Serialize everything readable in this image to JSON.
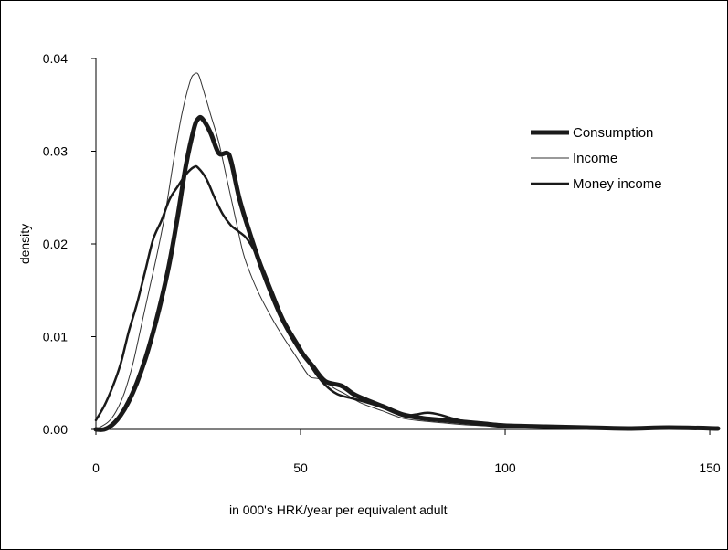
{
  "chart_data": {
    "type": "line",
    "title": "",
    "xlabel": "in 000's HRK/year per equivalent adult",
    "ylabel": "density",
    "xlim": [
      0,
      152
    ],
    "ylim": [
      0,
      0.04
    ],
    "xticks": [
      0,
      50,
      100,
      150
    ],
    "yticks": [
      0.0,
      0.01,
      0.02,
      0.03,
      0.04
    ],
    "xtick_labels": [
      "0",
      "50",
      "100",
      "150"
    ],
    "ytick_labels": [
      "0.00",
      "0.01",
      "0.02",
      "0.03",
      "0.04"
    ],
    "grid": false,
    "legend_position": "top-right",
    "series": [
      {
        "name": "Consumption",
        "color": "#1a1a1a",
        "width": 5,
        "points": [
          [
            0,
            0
          ],
          [
            2,
            0
          ],
          [
            4,
            0.0005
          ],
          [
            6,
            0.0015
          ],
          [
            8,
            0.003
          ],
          [
            10,
            0.005
          ],
          [
            12,
            0.0075
          ],
          [
            14,
            0.0105
          ],
          [
            16,
            0.014
          ],
          [
            18,
            0.018
          ],
          [
            20,
            0.023
          ],
          [
            22,
            0.0285
          ],
          [
            24,
            0.0325
          ],
          [
            25,
            0.0335
          ],
          [
            26,
            0.0335
          ],
          [
            28,
            0.032
          ],
          [
            30,
            0.0298
          ],
          [
            32,
            0.0298
          ],
          [
            33,
            0.029
          ],
          [
            35,
            0.025
          ],
          [
            37,
            0.022
          ],
          [
            40,
            0.018
          ],
          [
            43,
            0.0145
          ],
          [
            46,
            0.0115
          ],
          [
            50,
            0.0085
          ],
          [
            53,
            0.0068
          ],
          [
            56,
            0.0052
          ],
          [
            60,
            0.0047
          ],
          [
            63,
            0.0038
          ],
          [
            66,
            0.0032
          ],
          [
            70,
            0.0025
          ],
          [
            75,
            0.0016
          ],
          [
            80,
            0.0012
          ],
          [
            85,
            0.001
          ],
          [
            90,
            0.0008
          ],
          [
            95,
            0.0006
          ],
          [
            100,
            0.0004
          ],
          [
            110,
            0.0003
          ],
          [
            120,
            0.0002
          ],
          [
            130,
            0.0001
          ],
          [
            140,
            0.0002
          ],
          [
            152,
            0.0001
          ]
        ]
      },
      {
        "name": "Income",
        "color": "#333333",
        "width": 1,
        "points": [
          [
            0,
            0
          ],
          [
            3,
            0.0008
          ],
          [
            5,
            0.002
          ],
          [
            7,
            0.004
          ],
          [
            9,
            0.007
          ],
          [
            11,
            0.011
          ],
          [
            13,
            0.015
          ],
          [
            15,
            0.019
          ],
          [
            17,
            0.0235
          ],
          [
            19,
            0.029
          ],
          [
            21,
            0.034
          ],
          [
            23,
            0.0375
          ],
          [
            24,
            0.0383
          ],
          [
            25,
            0.0383
          ],
          [
            26,
            0.037
          ],
          [
            28,
            0.034
          ],
          [
            30,
            0.031
          ],
          [
            32,
            0.027
          ],
          [
            34,
            0.023
          ],
          [
            36,
            0.019
          ],
          [
            38,
            0.0165
          ],
          [
            40,
            0.0145
          ],
          [
            43,
            0.012
          ],
          [
            46,
            0.0098
          ],
          [
            49,
            0.0078
          ],
          [
            52,
            0.0058
          ],
          [
            54,
            0.0055
          ],
          [
            56,
            0.0053
          ],
          [
            58,
            0.0045
          ],
          [
            61,
            0.0038
          ],
          [
            65,
            0.0028
          ],
          [
            70,
            0.002
          ],
          [
            75,
            0.0012
          ],
          [
            80,
            0.0009
          ],
          [
            85,
            0.0007
          ],
          [
            90,
            0.0005
          ],
          [
            100,
            0.0003
          ],
          [
            110,
            0.0002
          ],
          [
            120,
            0.0001
          ],
          [
            152,
            0.0001
          ]
        ]
      },
      {
        "name": "Money income",
        "color": "#1a1a1a",
        "width": 2.5,
        "points": [
          [
            0,
            0.001
          ],
          [
            2,
            0.0025
          ],
          [
            4,
            0.0045
          ],
          [
            6,
            0.007
          ],
          [
            8,
            0.0105
          ],
          [
            10,
            0.0135
          ],
          [
            12,
            0.017
          ],
          [
            14,
            0.0205
          ],
          [
            16,
            0.0225
          ],
          [
            18,
            0.0248
          ],
          [
            20,
            0.0262
          ],
          [
            22,
            0.0275
          ],
          [
            24,
            0.0283
          ],
          [
            25,
            0.0282
          ],
          [
            27,
            0.027
          ],
          [
            29,
            0.025
          ],
          [
            31,
            0.0232
          ],
          [
            33,
            0.022
          ],
          [
            35,
            0.0213
          ],
          [
            37,
            0.0205
          ],
          [
            40,
            0.0182
          ],
          [
            43,
            0.015
          ],
          [
            46,
            0.0118
          ],
          [
            50,
            0.0088
          ],
          [
            53,
            0.0065
          ],
          [
            56,
            0.0048
          ],
          [
            59,
            0.0038
          ],
          [
            63,
            0.0033
          ],
          [
            67,
            0.0028
          ],
          [
            71,
            0.0022
          ],
          [
            75,
            0.0015
          ],
          [
            78,
            0.0016
          ],
          [
            81,
            0.0018
          ],
          [
            84,
            0.0016
          ],
          [
            87,
            0.0012
          ],
          [
            90,
            0.0009
          ],
          [
            95,
            0.0007
          ],
          [
            100,
            0.0005
          ],
          [
            110,
            0.0003
          ],
          [
            120,
            0.0002
          ],
          [
            130,
            0.0001
          ],
          [
            140,
            0.0003
          ],
          [
            145,
            0.0001
          ],
          [
            152,
            0.0001
          ]
        ]
      }
    ]
  }
}
